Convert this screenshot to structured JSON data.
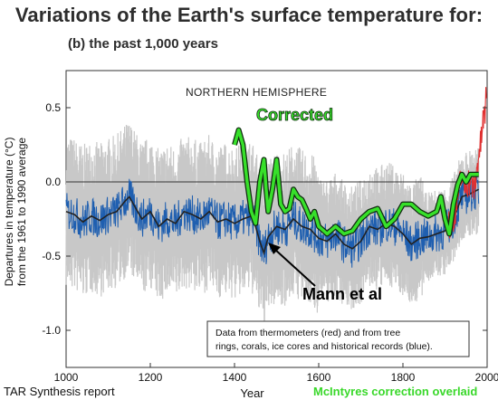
{
  "title": "Variations of the Earth's surface temperature for:",
  "subtitle": "(b) the past 1,000 years",
  "footer": {
    "left": "TAR Synthesis report",
    "right": "McIntyres correction overlaid"
  },
  "colors": {
    "proxy": "#1f5fb0",
    "smooth": "#222222",
    "uncertainty": "#c8c8c8",
    "instrumental": "#e03030",
    "corrected": "#37e02a",
    "corrected_outline": "#102a10"
  },
  "chart_data": {
    "type": "line",
    "region_label": "NORTHERN HEMISPHERE",
    "xlabel": "Year",
    "ylabel": "Departures in temperature (°C) from the 1961 to 1990 average",
    "xlim": [
      1000,
      2000
    ],
    "ylim": [
      -1.25,
      0.75
    ],
    "xticks": [
      "1000",
      "1200",
      "1400",
      "1600",
      "1800",
      "2000"
    ],
    "yticks": [
      "0.5",
      "0.0",
      "-0.5",
      "-1.0"
    ],
    "zero_line": true,
    "annotations": [
      {
        "text": "Corrected"
      },
      {
        "text": "Mann et al"
      }
    ],
    "note": "Data from thermometers (red) and from tree rings, corals, ice cores and historical records (blue).",
    "series": [
      {
        "kind": "smoothed_proxy",
        "x": [
          1000,
          1020,
          1040,
          1060,
          1080,
          1100,
          1120,
          1140,
          1150,
          1160,
          1180,
          1200,
          1220,
          1240,
          1260,
          1280,
          1300,
          1320,
          1340,
          1360,
          1380,
          1400,
          1420,
          1440,
          1450,
          1460,
          1470,
          1480,
          1500,
          1520,
          1540,
          1560,
          1580,
          1600,
          1620,
          1640,
          1660,
          1680,
          1700,
          1720,
          1740,
          1760,
          1780,
          1800,
          1820,
          1840,
          1860,
          1880,
          1900,
          1920,
          1940,
          1960,
          1980
        ],
        "y": [
          -0.2,
          -0.22,
          -0.27,
          -0.23,
          -0.26,
          -0.22,
          -0.2,
          -0.13,
          -0.1,
          -0.15,
          -0.25,
          -0.2,
          -0.3,
          -0.25,
          -0.28,
          -0.2,
          -0.22,
          -0.25,
          -0.2,
          -0.27,
          -0.25,
          -0.28,
          -0.25,
          -0.23,
          -0.3,
          -0.4,
          -0.48,
          -0.37,
          -0.3,
          -0.32,
          -0.25,
          -0.3,
          -0.32,
          -0.38,
          -0.4,
          -0.35,
          -0.42,
          -0.45,
          -0.4,
          -0.3,
          -0.32,
          -0.28,
          -0.3,
          -0.35,
          -0.42,
          -0.38,
          -0.37,
          -0.35,
          -0.33,
          -0.25,
          -0.1,
          -0.08,
          -0.05
        ]
      },
      {
        "name": "Corrected",
        "x": [
          1400,
          1410,
          1420,
          1430,
          1440,
          1450,
          1460,
          1470,
          1475,
          1480,
          1490,
          1500,
          1510,
          1520,
          1530,
          1540,
          1550,
          1560,
          1570,
          1580,
          1590,
          1600,
          1620,
          1640,
          1660,
          1680,
          1700,
          1720,
          1740,
          1760,
          1780,
          1790,
          1800,
          1820,
          1840,
          1860,
          1880,
          1890,
          1900,
          1910,
          1920,
          1930,
          1940,
          1950,
          1960,
          1970,
          1980
        ],
        "y": [
          0.25,
          0.35,
          0.25,
          0.0,
          -0.2,
          -0.28,
          0.0,
          0.15,
          -0.05,
          -0.2,
          -0.05,
          0.15,
          -0.15,
          -0.2,
          -0.18,
          -0.05,
          -0.1,
          -0.12,
          -0.18,
          -0.25,
          -0.2,
          -0.3,
          -0.35,
          -0.3,
          -0.35,
          -0.33,
          -0.25,
          -0.2,
          -0.18,
          -0.3,
          -0.25,
          -0.2,
          -0.15,
          -0.15,
          -0.2,
          -0.23,
          -0.2,
          -0.1,
          -0.25,
          -0.35,
          -0.15,
          -0.02,
          0.05,
          0.0,
          0.05,
          0.05,
          0.05
        ]
      },
      {
        "name": "thermometers",
        "x": [
          1900,
          1910,
          1920,
          1930,
          1940,
          1945,
          1950,
          1960,
          1970,
          1975,
          1980,
          1985,
          1990,
          1995,
          1998
        ],
        "y": [
          -0.2,
          -0.3,
          -0.25,
          -0.1,
          0.05,
          -0.05,
          0.0,
          0.0,
          -0.05,
          0.05,
          0.2,
          0.25,
          0.4,
          0.45,
          0.65
        ]
      }
    ]
  }
}
